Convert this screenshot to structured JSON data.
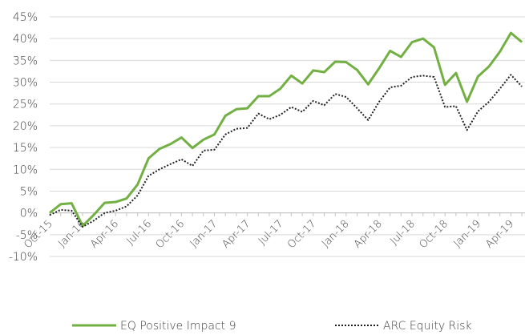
{
  "chart_data": {
    "type": "line",
    "categories": [
      "Oct-15",
      null,
      null,
      "Jan-16",
      null,
      null,
      "Apr-16",
      null,
      null,
      "Jul-16",
      null,
      null,
      "Oct-16",
      null,
      null,
      "Jan-17",
      null,
      null,
      "Apr-17",
      null,
      null,
      "Jul-17",
      null,
      null,
      "Oct-17",
      null,
      null,
      "Jan-18",
      null,
      null,
      "Apr-18",
      null,
      null,
      "Jul-18",
      null,
      null,
      "Oct-18",
      null,
      null,
      "Jan-19",
      null,
      null,
      "Apr-19",
      null
    ],
    "series": [
      {
        "name": "EQ Positive Impact 9",
        "color": "#72b043",
        "style": "solid",
        "values": [
          0,
          2,
          2.2,
          -3,
          -0.5,
          2.3,
          2.5,
          3.3,
          6.5,
          12.5,
          14.7,
          15.8,
          17.3,
          14.9,
          16.8,
          18,
          22.3,
          23.8,
          24,
          26.8,
          26.8,
          28.5,
          31.5,
          29.7,
          32.7,
          32.3,
          34.7,
          34.6,
          32.8,
          29.5,
          33.2,
          37.2,
          35.8,
          39.2,
          40,
          38,
          29.4,
          32.1,
          25.5,
          31.3,
          33.6,
          37,
          41.3,
          39.2
        ]
      },
      {
        "name": "ARC Equity Risk",
        "color": "#222222",
        "style": "dotted",
        "values": [
          -0.5,
          0.7,
          0.5,
          -3.2,
          -1.8,
          0,
          0.5,
          1.5,
          4,
          8.5,
          10,
          11.2,
          12.3,
          10.8,
          14.3,
          14.5,
          18,
          19.3,
          19.5,
          22.8,
          21.5,
          22.5,
          24.3,
          23.2,
          25.7,
          24.7,
          27.3,
          26.6,
          24,
          21.3,
          25.5,
          28.8,
          29.2,
          31.2,
          31.5,
          31.2,
          24.3,
          24.5,
          19,
          23.3,
          25.5,
          28.5,
          31.7,
          29
        ]
      }
    ],
    "ylim": [
      -10,
      45
    ],
    "yticks": [
      {
        "value": -10,
        "label": "-10%"
      },
      {
        "value": -5,
        "label": "-5%"
      },
      {
        "value": 0,
        "label": "0%"
      },
      {
        "value": 5,
        "label": "5%"
      },
      {
        "value": 10,
        "label": "10%"
      },
      {
        "value": 15,
        "label": "15%"
      },
      {
        "value": 20,
        "label": "20%"
      },
      {
        "value": 25,
        "label": "25%"
      },
      {
        "value": 30,
        "label": "30%"
      },
      {
        "value": 35,
        "label": "35%"
      },
      {
        "value": 40,
        "label": "40%"
      },
      {
        "value": 45,
        "label": "45%"
      }
    ],
    "grid": true,
    "legend": "bottom"
  }
}
